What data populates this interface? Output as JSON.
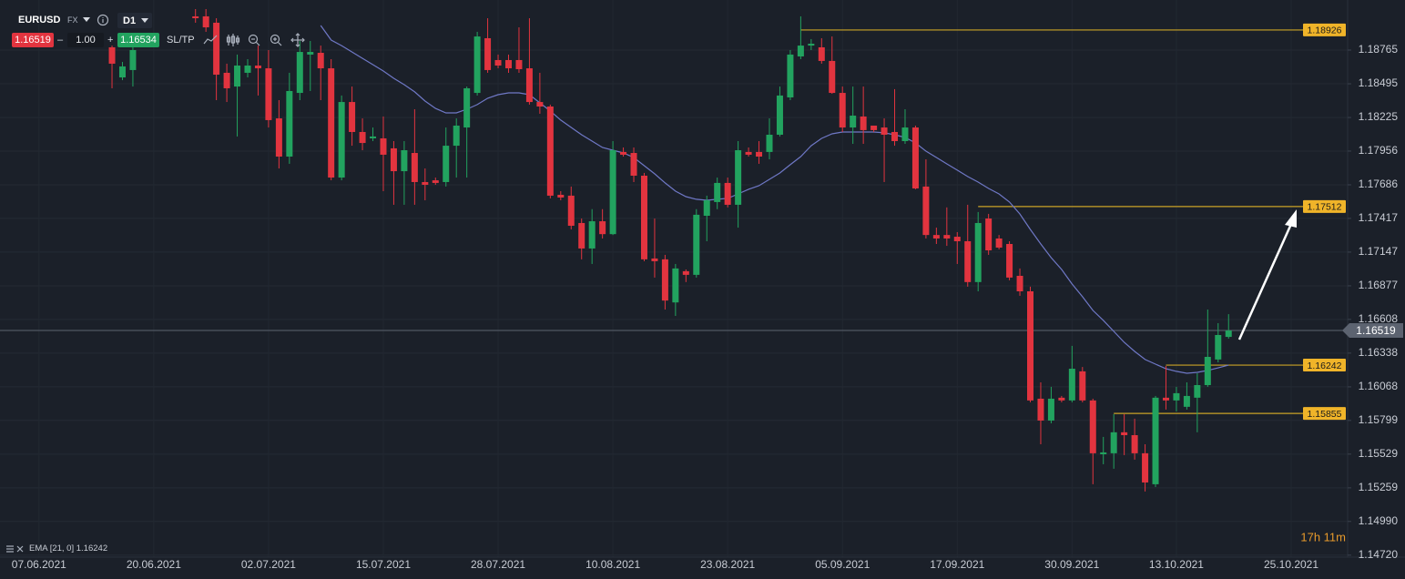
{
  "toolbar": {
    "symbol": "EURUSD",
    "market": "FX",
    "timeframe": "D1",
    "sell": "1.16519",
    "minus": "–",
    "quantity": "1.00",
    "plus": "+",
    "buy": "1.16534",
    "sltp": "SL/TP"
  },
  "countdown": "17h 11m",
  "chart_data": {
    "type": "candlestick",
    "categories": [
      "07.06.2021",
      null,
      null,
      null,
      null,
      null,
      null,
      null,
      null,
      null,
      null,
      "20.06.2021",
      null,
      null,
      null,
      null,
      null,
      null,
      null,
      null,
      null,
      null,
      "02.07.2021",
      null,
      null,
      null,
      null,
      null,
      null,
      null,
      null,
      null,
      null,
      "15.07.2021",
      null,
      null,
      null,
      null,
      null,
      null,
      null,
      null,
      null,
      null,
      "28.07.2021",
      null,
      null,
      null,
      null,
      null,
      null,
      null,
      null,
      null,
      null,
      "10.08.2021",
      null,
      null,
      null,
      null,
      null,
      null,
      null,
      null,
      null,
      null,
      "23.08.2021",
      null,
      null,
      null,
      null,
      null,
      null,
      null,
      null,
      null,
      null,
      "05.09.2021",
      null,
      null,
      null,
      null,
      null,
      null,
      null,
      null,
      null,
      null,
      "17.09.2021",
      null,
      null,
      null,
      null,
      null,
      null,
      null,
      null,
      null,
      null,
      "30.09.2021",
      null,
      null,
      null,
      null,
      null,
      null,
      null,
      null,
      null,
      "13.10.2021",
      null,
      null,
      null,
      null,
      null,
      null,
      null,
      null,
      null,
      null,
      "25.10.2021"
    ],
    "ohlc": [
      null,
      null,
      null,
      null,
      null,
      null,
      null,
      [
        1.18787,
        1.18801,
        1.18459,
        1.18656
      ],
      [
        1.18546,
        1.1867,
        1.18524,
        1.18634
      ],
      [
        1.18605,
        1.18816,
        1.18473,
        1.18765
      ],
      null,
      null,
      null,
      null,
      null,
      [
        1.19035,
        1.19093,
        1.18984,
        1.1902
      ],
      [
        1.19035,
        1.19093,
        1.18911,
        1.18947
      ],
      [
        1.18984,
        1.1902,
        1.18364,
        1.18568
      ],
      [
        1.18583,
        1.18656,
        1.18349,
        1.18459
      ],
      [
        1.18473,
        1.18729,
        1.18073,
        1.18641
      ],
      [
        1.18583,
        1.18692,
        1.18546,
        1.18641
      ],
      [
        1.18641,
        1.18801,
        1.18401,
        1.18619
      ],
      [
        1.18619,
        1.18765,
        1.18145,
        1.18204
      ],
      [
        1.18218,
        1.18364,
        1.17817,
        1.17912
      ],
      [
        1.17912,
        1.18583,
        1.17854,
        1.18437
      ],
      [
        1.18422,
        1.18838,
        1.18364,
        1.1875
      ],
      [
        1.18729,
        1.18838,
        1.18437,
        1.1875
      ],
      [
        1.18743,
        1.18801,
        1.18364,
        1.18619
      ],
      [
        1.18619,
        1.18692,
        1.17722,
        1.17744
      ],
      [
        1.17744,
        1.18401,
        1.17722,
        1.18349
      ],
      [
        1.18349,
        1.18473,
        1.17999,
        1.18109
      ],
      [
        1.18109,
        1.18218,
        1.17963,
        1.18021
      ],
      [
        1.18058,
        1.18145,
        1.18036,
        1.18073
      ],
      [
        1.18058,
        1.18233,
        1.17635,
        1.17927
      ],
      [
        1.17978,
        1.18036,
        1.17526,
        1.17795
      ],
      [
        1.17795,
        1.18036,
        1.17526,
        1.17963
      ],
      [
        1.17941,
        1.18291,
        1.17526,
        1.17708
      ],
      [
        1.17708,
        1.17817,
        1.17562,
        1.17686
      ],
      [
        1.17722,
        1.17744,
        1.17686,
        1.17701
      ],
      [
        1.17708,
        1.18145,
        1.17672,
        1.17999
      ],
      [
        1.17999,
        1.18218,
        1.17744,
        1.1816
      ],
      [
        1.18145,
        1.18473,
        1.17744,
        1.18459
      ],
      [
        1.18422,
        1.18911,
        1.18401,
        1.18874
      ],
      [
        1.1886,
        1.1902,
        1.18583,
        1.18605
      ],
      [
        1.18685,
        1.18729,
        1.18619,
        1.18641
      ],
      [
        1.18685,
        1.18729,
        1.18583,
        1.18619
      ],
      [
        1.18685,
        1.18947,
        1.18583,
        1.18612
      ],
      [
        1.18619,
        1.1902,
        1.18328,
        1.18349
      ],
      [
        1.18349,
        1.18583,
        1.18255,
        1.18313
      ],
      [
        1.18313,
        1.18328,
        1.17577,
        1.17599
      ],
      [
        1.17606,
        1.17635,
        1.17562,
        1.17584
      ],
      [
        1.17599,
        1.17672,
        1.17329,
        1.17358
      ],
      [
        1.1738,
        1.17416,
        1.17089,
        1.17176
      ],
      [
        1.17176,
        1.17491,
        1.17052,
        1.17394
      ],
      [
        1.17394,
        1.17491,
        1.17256,
        1.17291
      ],
      [
        1.17291,
        1.18036,
        1.17284,
        1.17963
      ],
      [
        1.17949,
        1.17985,
        1.17912,
        1.17927
      ],
      [
        1.17941,
        1.17985,
        1.17708,
        1.17759
      ],
      [
        1.17759,
        1.17781,
        1.17074,
        1.17089
      ],
      [
        1.17096,
        1.17416,
        1.16943,
        1.17074
      ],
      [
        1.17089,
        1.17125,
        1.16687,
        1.16759
      ],
      [
        1.16744,
        1.17052,
        1.16636,
        1.17016
      ],
      [
        1.16994,
        1.17008,
        1.16907,
        1.16965
      ],
      [
        1.16965,
        1.17491,
        1.16943,
        1.17446
      ],
      [
        1.17438,
        1.17599,
        1.17234,
        1.17562
      ],
      [
        1.17548,
        1.17744,
        1.17491,
        1.17701
      ],
      [
        1.17701,
        1.17744,
        1.17505,
        1.17526
      ],
      [
        1.17526,
        1.18036,
        1.17343,
        1.17963
      ],
      [
        1.17949,
        1.17985,
        1.17912,
        1.17927
      ],
      [
        1.17949,
        1.18036,
        1.17854,
        1.17912
      ],
      [
        1.17949,
        1.18218,
        1.1789,
        1.18087
      ],
      [
        1.18087,
        1.18473,
        1.18073,
        1.18401
      ],
      [
        1.18386,
        1.18765,
        1.18364,
        1.18729
      ],
      [
        1.18714,
        1.19035,
        1.18692,
        1.18801
      ],
      [
        1.18801,
        1.18853,
        1.18765,
        1.18816
      ],
      [
        1.18787,
        1.1886,
        1.18656,
        1.18678
      ],
      [
        1.18678,
        1.18874,
        1.18415,
        1.18422
      ],
      [
        1.18422,
        1.18473,
        1.18109,
        1.18145
      ],
      [
        1.18145,
        1.18473,
        1.18014,
        1.1824
      ],
      [
        1.18233,
        1.18473,
        1.18014,
        1.18124
      ],
      [
        1.1816,
        1.1816,
        1.18109,
        1.18124
      ],
      [
        1.18145,
        1.18218,
        1.17708,
        1.18087
      ],
      [
        1.18109,
        1.18452,
        1.17999,
        1.18036
      ],
      [
        1.18036,
        1.18291,
        1.18014,
        1.18145
      ],
      [
        1.18145,
        1.1816,
        1.1765,
        1.17657
      ],
      [
        1.17672,
        1.1789,
        1.17256,
        1.17284
      ],
      [
        1.17284,
        1.17343,
        1.17212,
        1.17256
      ],
      [
        1.17284,
        1.17505,
        1.17197,
        1.17256
      ],
      [
        1.1727,
        1.17307,
        1.17052,
        1.17234
      ],
      [
        1.17234,
        1.17526,
        1.1687,
        1.16907
      ],
      [
        1.16907,
        1.17468,
        1.16833,
        1.1738
      ],
      [
        1.17416,
        1.17453,
        1.17125,
        1.17161
      ],
      [
        1.17256,
        1.17284,
        1.17169,
        1.17183
      ],
      [
        1.17212,
        1.17234,
        1.16921,
        1.16943
      ],
      [
        1.16957,
        1.17016,
        1.16797,
        1.16833
      ],
      [
        1.16833,
        1.1687,
        1.15944,
        1.15959
      ],
      [
        1.15973,
        1.16104,
        1.15608,
        1.15798
      ],
      [
        1.15798,
        1.16068,
        1.15776,
        1.15973
      ],
      [
        1.15981,
        1.15995,
        1.15944,
        1.15959
      ],
      [
        1.15959,
        1.16396,
        1.15944,
        1.16213
      ],
      [
        1.16192,
        1.16227,
        1.15944,
        1.15959
      ],
      [
        1.15959,
        1.15973,
        1.15288,
        1.15536
      ],
      [
        1.15528,
        1.15667,
        1.15448,
        1.15543
      ],
      [
        1.15536,
        1.15849,
        1.15412,
        1.15704
      ],
      [
        1.15704,
        1.15849,
        1.15521,
        1.15681
      ],
      [
        1.15681,
        1.15813,
        1.15485,
        1.15536
      ],
      [
        1.15536,
        1.15608,
        1.1523,
        1.15302
      ],
      [
        1.15288,
        1.15995,
        1.15266,
        1.15981
      ],
      [
        1.15981,
        1.16235,
        1.15886,
        1.15959
      ],
      [
        1.15959,
        1.16068,
        1.15871,
        1.16017
      ],
      [
        1.15908,
        1.16104,
        1.15886,
        1.15995
      ],
      [
        1.15981,
        1.16177,
        1.15704,
        1.16082
      ],
      [
        1.16082,
        1.16687,
        1.16068,
        1.16308
      ],
      [
        1.16287,
        1.16578,
        1.16264,
        1.16483
      ],
      [
        1.16468,
        1.1665,
        1.16454,
        1.16519
      ],
      null,
      null,
      null,
      null,
      null,
      null
    ],
    "up_color": "#22a35f",
    "down_color": "#e2343f",
    "overlays": [
      {
        "name": "EMA [21, 0]",
        "color": "#6f78c6",
        "values": [
          null,
          null,
          null,
          null,
          null,
          null,
          null,
          null,
          null,
          null,
          null,
          null,
          null,
          null,
          null,
          null,
          null,
          null,
          null,
          null,
          null,
          null,
          null,
          null,
          null,
          null,
          null,
          1.18962,
          1.18845,
          1.18801,
          1.1875,
          1.18699,
          1.18648,
          1.18597,
          1.18539,
          1.18488,
          1.1843,
          1.18357,
          1.18298,
          1.18262,
          1.18262,
          1.18291,
          1.18328,
          1.18379,
          1.18408,
          1.18422,
          1.18422,
          1.18408,
          1.18342,
          1.18277,
          1.18204,
          1.18145,
          1.18087,
          1.18036,
          1.17985,
          1.17963,
          1.17941,
          1.17905,
          1.17839,
          1.17774,
          1.17701,
          1.17635,
          1.17591,
          1.1757,
          1.17562,
          1.1757,
          1.17577,
          1.17613,
          1.1765,
          1.17679,
          1.1773,
          1.17781,
          1.17847,
          1.17912,
          1.17999,
          1.18058,
          1.18094,
          1.18109,
          1.18109,
          1.18109,
          1.18109,
          1.18102,
          1.18087,
          1.18065,
          1.18021,
          1.17956,
          1.17905,
          1.17854,
          1.17803,
          1.17752,
          1.17708,
          1.17657,
          1.17613,
          1.17548,
          1.17453,
          1.17329,
          1.17212,
          1.17103,
          1.17008,
          1.16892,
          1.1679,
          1.1668,
          1.166,
          1.16512,
          1.16425,
          1.16352,
          1.16287,
          1.1625,
          1.16213,
          1.16192,
          1.16177,
          1.16184,
          1.16199,
          1.1622,
          1.16242,
          null,
          null,
          null,
          null,
          null,
          null
        ]
      }
    ],
    "levels": [
      {
        "value": 1.18926,
        "color": "#c9a227"
      },
      {
        "value": 1.17512,
        "color": "#c9a227"
      },
      {
        "value": 1.16242,
        "color": "#c9a227"
      },
      {
        "value": 1.15855,
        "color": "#c9a227"
      }
    ],
    "last_price": 1.16519,
    "last_price_color": "#5c6370",
    "ylim": [
      1.14704,
      1.19166
    ],
    "yticks": [
      {
        "value": 1.1472,
        "label": "1.14720"
      },
      {
        "value": 1.1499,
        "label": "1.14990"
      },
      1.15259,
      1.15529,
      1.15799,
      1.16068,
      1.16338,
      1.16608,
      1.16877,
      1.17147,
      1.17417,
      1.17686,
      1.17956,
      1.18225,
      1.18495,
      1.18765
    ],
    "grid": true
  }
}
